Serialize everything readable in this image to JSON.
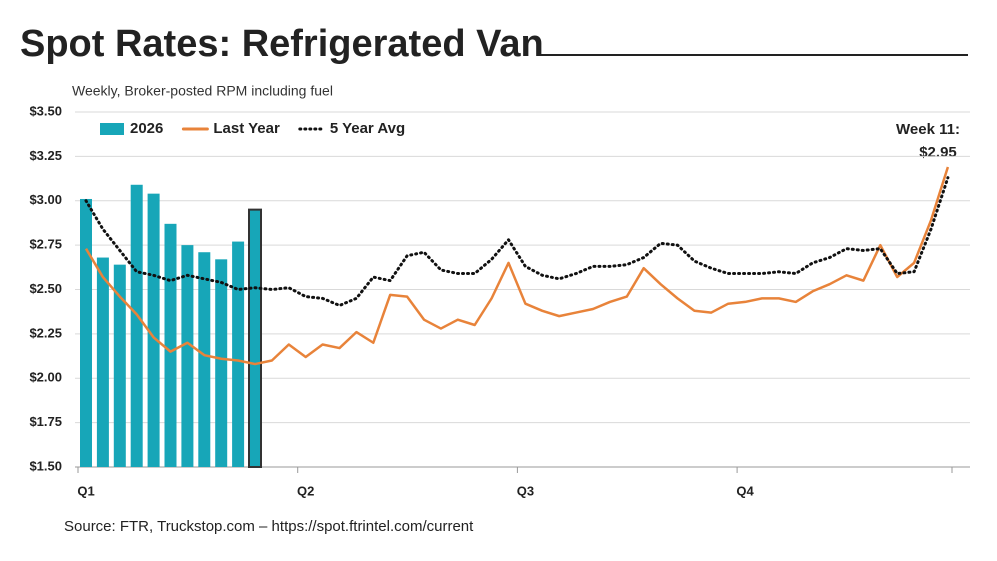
{
  "chart_data": {
    "type": "bar_line",
    "title": "Spot Rates: Refrigerated Van",
    "subtitle": "Weekly, Broker-posted RPM including fuel",
    "source": "Source: FTR, Truckstop.com – https://spot.ftrintel.com/current",
    "annotation": [
      "Week 11:",
      "$2.95"
    ],
    "categories": [
      "Q1",
      null,
      null,
      null,
      null,
      null,
      null,
      null,
      null,
      null,
      null,
      null,
      null,
      "Q2",
      null,
      null,
      null,
      null,
      null,
      null,
      null,
      null,
      null,
      null,
      null,
      null,
      "Q3",
      null,
      null,
      null,
      null,
      null,
      null,
      null,
      null,
      null,
      null,
      null,
      null,
      "Q4",
      null,
      null,
      null,
      null,
      null,
      null,
      null,
      null,
      null,
      null,
      null,
      null
    ],
    "series": [
      {
        "name": "2026",
        "kind": "bar",
        "color": "#17a6b8",
        "highlight_color": "#333333",
        "highlight_index": 10,
        "values": [
          3.01,
          2.68,
          2.64,
          3.09,
          3.04,
          2.87,
          2.75,
          2.71,
          2.67,
          2.77,
          2.95,
          null,
          null,
          null,
          null,
          null,
          null,
          null,
          null,
          null,
          null,
          null,
          null,
          null,
          null,
          null,
          null,
          null,
          null,
          null,
          null,
          null,
          null,
          null,
          null,
          null,
          null,
          null,
          null,
          null,
          null,
          null,
          null,
          null,
          null,
          null,
          null,
          null,
          null,
          null,
          null,
          null
        ]
      },
      {
        "name": "Last Year",
        "kind": "line",
        "color": "#e8833a",
        "values": [
          2.73,
          2.57,
          2.46,
          2.36,
          2.23,
          2.15,
          2.2,
          2.13,
          2.11,
          2.1,
          2.08,
          2.1,
          2.19,
          2.12,
          2.19,
          2.17,
          2.26,
          2.2,
          2.47,
          2.46,
          2.33,
          2.28,
          2.33,
          2.3,
          2.45,
          2.65,
          2.42,
          2.38,
          2.35,
          2.37,
          2.39,
          2.43,
          2.46,
          2.62,
          2.53,
          2.45,
          2.38,
          2.37,
          2.42,
          2.43,
          2.45,
          2.45,
          2.43,
          2.49,
          2.53,
          2.58,
          2.55,
          2.75,
          2.57,
          2.65,
          2.89,
          3.19
        ]
      },
      {
        "name": "5 Year Avg",
        "kind": "dotted",
        "color": "#111111",
        "values": [
          3.0,
          2.84,
          2.72,
          2.6,
          2.58,
          2.55,
          2.58,
          2.56,
          2.54,
          2.5,
          2.51,
          2.5,
          2.51,
          2.46,
          2.45,
          2.41,
          2.45,
          2.57,
          2.55,
          2.69,
          2.71,
          2.61,
          2.59,
          2.59,
          2.67,
          2.78,
          2.63,
          2.58,
          2.56,
          2.59,
          2.63,
          2.63,
          2.64,
          2.68,
          2.76,
          2.75,
          2.66,
          2.62,
          2.59,
          2.59,
          2.59,
          2.6,
          2.59,
          2.65,
          2.68,
          2.73,
          2.72,
          2.73,
          2.59,
          2.6,
          2.84,
          3.13
        ]
      }
    ],
    "ylim": [
      1.5,
      3.5
    ],
    "yticks": [
      {
        "value": 1.5,
        "label": "$1.50"
      },
      {
        "value": 1.75,
        "label": "$1.75"
      },
      {
        "value": 2,
        "label": "$2.00"
      },
      {
        "value": 2.25,
        "label": "$2.25"
      },
      {
        "value": 2.5,
        "label": "$2.50"
      },
      {
        "value": 2.75,
        "label": "$2.75"
      },
      {
        "value": 3,
        "label": "$3.00"
      },
      {
        "value": 3.25,
        "label": "$3.25"
      },
      {
        "value": 3.5,
        "label": "$3.50"
      }
    ],
    "grid": true,
    "legend": "top-left"
  }
}
